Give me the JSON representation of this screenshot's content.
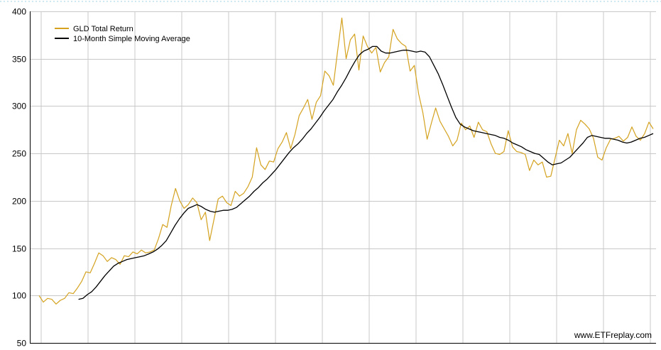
{
  "chart_data": {
    "type": "line",
    "title": "",
    "xlabel": "",
    "ylabel": "",
    "ylim": [
      50,
      400
    ],
    "y_ticks": [
      "400",
      "350",
      "300",
      "250",
      "200",
      "150",
      "100",
      "50"
    ],
    "grid": "on",
    "legend_position": "top-left",
    "watermark": "www.ETFreplay.com",
    "series": [
      {
        "name": "GLD Total Return",
        "color": "#d4a21f",
        "values": [
          100,
          93,
          97,
          96,
          91,
          95,
          97,
          103,
          102,
          108,
          115,
          125,
          124,
          134,
          145,
          142,
          136,
          140,
          138,
          133,
          142,
          141,
          146,
          144,
          148,
          145,
          146,
          148,
          160,
          175,
          172,
          195,
          213,
          200,
          192,
          196,
          203,
          198,
          180,
          188,
          158,
          180,
          202,
          205,
          198,
          195,
          210,
          205,
          208,
          215,
          225,
          256,
          238,
          233,
          242,
          241,
          255,
          262,
          272,
          255,
          270,
          290,
          298,
          307,
          286,
          304,
          311,
          337,
          332,
          322,
          358,
          393,
          350,
          370,
          376,
          338,
          374,
          363,
          356,
          362,
          336,
          346,
          352,
          381,
          371,
          366,
          363,
          337,
          343,
          313,
          293,
          265,
          282,
          298,
          284,
          276,
          268,
          258,
          264,
          282,
          275,
          279,
          267,
          283,
          275,
          273,
          260,
          250,
          249,
          252,
          274,
          257,
          252,
          251,
          249,
          232,
          243,
          238,
          241,
          225,
          226,
          245,
          264,
          258,
          271,
          250,
          275,
          285,
          281,
          276,
          266,
          246,
          243,
          256,
          265,
          266,
          268,
          263,
          267,
          278,
          268,
          264,
          271,
          283,
          276
        ]
      },
      {
        "name": "10-Month Simple Moving Average",
        "color": "#000000",
        "values": [
          null,
          null,
          null,
          null,
          null,
          null,
          null,
          null,
          null,
          96,
          97,
          101,
          104,
          109,
          115,
          121,
          126,
          131,
          134,
          136,
          138,
          139,
          140,
          141,
          142,
          144,
          146,
          149,
          153,
          158,
          166,
          174,
          181,
          187,
          192,
          194,
          196,
          194,
          191,
          189,
          188,
          189,
          190,
          190,
          191,
          193,
          197,
          201,
          205,
          210,
          214,
          219,
          223,
          228,
          233,
          239,
          245,
          251,
          256,
          260,
          265,
          271,
          276,
          282,
          288,
          295,
          301,
          307,
          315,
          322,
          330,
          339,
          347,
          354,
          358,
          360,
          363,
          363,
          358,
          356,
          356,
          357,
          358,
          359,
          359,
          358,
          357,
          358,
          357,
          352,
          343,
          334,
          323,
          311,
          299,
          288,
          281,
          278,
          276,
          274,
          273,
          272,
          271,
          270,
          269,
          267,
          266,
          264,
          261,
          259,
          257,
          254,
          252,
          250,
          249,
          245,
          241,
          238,
          239,
          240,
          243,
          246,
          251,
          256,
          261,
          267,
          269,
          268,
          267,
          266,
          266,
          265,
          264,
          262,
          261,
          262,
          264,
          266,
          267,
          269,
          271
        ]
      }
    ]
  }
}
